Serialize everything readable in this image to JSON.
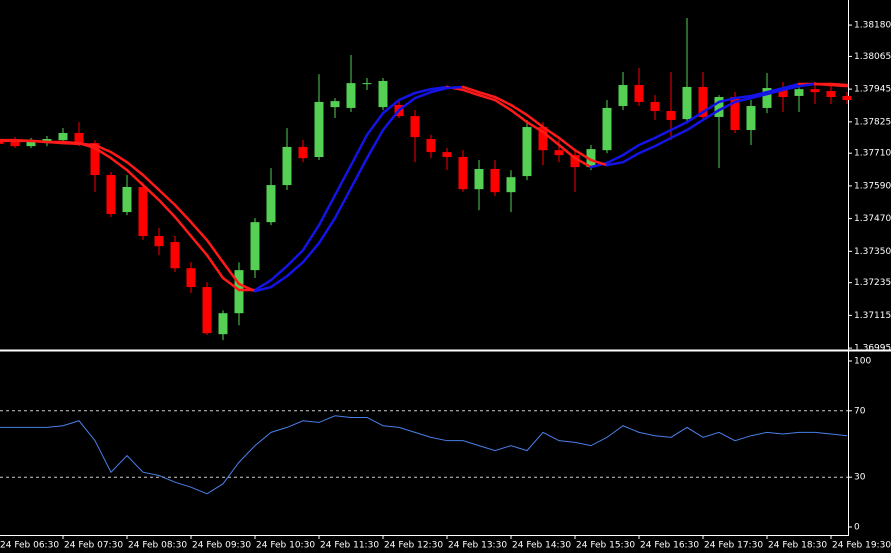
{
  "chart_data": [
    {
      "type": "candlestick",
      "categories": [
        "24 Feb 06:30",
        null,
        null,
        null,
        "24 Feb 07:30",
        null,
        null,
        null,
        "24 Feb 08:30",
        null,
        null,
        null,
        "24 Feb 09:30",
        null,
        null,
        null,
        "24 Feb 10:30",
        null,
        null,
        null,
        "24 Feb 11:30",
        null,
        null,
        null,
        "24 Feb 12:30",
        null,
        null,
        null,
        "24 Feb 13:30",
        null,
        null,
        null,
        "24 Feb 14:30",
        null,
        null,
        null,
        "24 Feb 15:30",
        null,
        null,
        null,
        "24 Feb 16:30",
        null,
        null,
        null,
        "24 Feb 17:30",
        null,
        null,
        null,
        "24 Feb 18:30",
        null,
        null,
        null,
        "24 Feb 19:30",
        null
      ],
      "open": [
        1.37762,
        1.37758,
        1.37736,
        1.37747,
        1.37758,
        1.37784,
        1.37747,
        1.3763,
        1.37494,
        1.37586,
        1.37406,
        1.37384,
        1.37288,
        1.37219,
        1.37046,
        1.37123,
        1.37281,
        1.37457,
        1.37593,
        1.37733,
        1.37696,
        1.37879,
        1.37876,
        1.37964,
        1.37879,
        1.37887,
        1.37846,
        1.37762,
        1.37714,
        1.37696,
        1.37578,
        1.37652,
        1.37567,
        1.37626,
        1.37806,
        1.37721,
        1.37703,
        1.37659,
        1.37721,
        1.37883,
        1.3796,
        1.37898,
        1.37865,
        1.37835,
        1.37953,
        1.37843,
        1.37916,
        1.37795,
        1.37876,
        1.37949,
        1.3792,
        1.37945,
        1.37938,
        1.3792
      ],
      "high": [
        1.37769,
        1.37769,
        1.37766,
        1.37773,
        1.37802,
        1.37824,
        1.37758,
        1.37641,
        1.3763,
        1.37604,
        1.37435,
        1.37406,
        1.3731,
        1.37237,
        1.37134,
        1.3731,
        1.37472,
        1.37655,
        1.37802,
        1.37758,
        1.38,
        1.37912,
        1.3807,
        1.37986,
        1.37986,
        1.37905,
        1.37868,
        1.37777,
        1.37729,
        1.37721,
        1.37685,
        1.37685,
        1.37648,
        1.37832,
        1.37824,
        1.37758,
        1.37721,
        1.3774,
        1.37905,
        1.38008,
        1.38022,
        1.37923,
        1.38008,
        1.38206,
        1.38008,
        1.37923,
        1.37934,
        1.37905,
        1.38004,
        1.37971,
        1.37967,
        1.37971,
        1.37956,
        1.37934
      ],
      "low": [
        1.37736,
        1.37729,
        1.37729,
        1.37736,
        1.37751,
        1.37736,
        1.37567,
        1.37476,
        1.37483,
        1.37391,
        1.37336,
        1.37274,
        1.37197,
        1.37043,
        1.37024,
        1.37079,
        1.37252,
        1.37446,
        1.37575,
        1.37677,
        1.37685,
        1.37839,
        1.37861,
        1.37942,
        1.37868,
        1.37839,
        1.37677,
        1.37692,
        1.37648,
        1.37567,
        1.37501,
        1.37553,
        1.37494,
        1.37611,
        1.37666,
        1.37677,
        1.37567,
        1.37648,
        1.3771,
        1.37868,
        1.37883,
        1.37832,
        1.37758,
        1.37824,
        1.37832,
        1.37655,
        1.37784,
        1.3774,
        1.37857,
        1.37861,
        1.37861,
        1.3789,
        1.3789,
        1.3789
      ],
      "close": [
        1.37744,
        1.37736,
        1.37755,
        1.37762,
        1.37784,
        1.37747,
        1.3763,
        1.37487,
        1.37586,
        1.37406,
        1.37369,
        1.37288,
        1.37219,
        1.3705,
        1.37123,
        1.37281,
        1.37457,
        1.37593,
        1.37733,
        1.37692,
        1.37898,
        1.37901,
        1.37967,
        1.37967,
        1.37975,
        1.37846,
        1.37769,
        1.37714,
        1.37696,
        1.37578,
        1.37652,
        1.37567,
        1.37622,
        1.37806,
        1.37721,
        1.37703,
        1.37659,
        1.37725,
        1.37876,
        1.3796,
        1.37898,
        1.37865,
        1.37832,
        1.37953,
        1.37843,
        1.37916,
        1.37795,
        1.37883,
        1.37949,
        1.37916,
        1.37945,
        1.37934,
        1.37916,
        1.37905
      ],
      "up_color": "#55d055",
      "down_color": "#ff0000",
      "lines": [
        {
          "values": [
            1.37758,
            1.37758,
            1.37755,
            1.37751,
            1.37751,
            1.37747,
            1.37729,
            1.37692,
            1.37648,
            1.37593,
            1.37538,
            1.37476,
            1.37406,
            1.37336,
            1.37252,
            1.37208,
            1.37208,
            1.37244,
            1.37296,
            1.37354,
            1.37446,
            1.37556,
            1.37666,
            1.37777,
            1.37857,
            1.37905,
            1.37931,
            1.37945,
            1.37953,
            1.37942,
            1.37923,
            1.37905,
            1.37868,
            1.37824,
            1.37788,
            1.3774,
            1.37692,
            1.37659,
            1.37674,
            1.37703,
            1.3774,
            1.37766,
            1.37795,
            1.37824,
            1.37861,
            1.37898,
            1.37912,
            1.3792,
            1.37934,
            1.37949,
            1.37964,
            1.37964,
            1.3796,
            1.37956
          ],
          "rising_color": "#1414e6",
          "falling_color": "#ff1a1a"
        },
        {
          "values": [
            1.37755,
            1.37755,
            1.37755,
            1.37751,
            1.37747,
            1.37744,
            1.3774,
            1.37714,
            1.37677,
            1.3763,
            1.37575,
            1.3752,
            1.37457,
            1.37391,
            1.3731,
            1.3723,
            1.37204,
            1.37219,
            1.37259,
            1.3731,
            1.3738,
            1.37472,
            1.37582,
            1.37692,
            1.37795,
            1.37868,
            1.37912,
            1.37934,
            1.37949,
            1.37953,
            1.37934,
            1.37916,
            1.37887,
            1.3785,
            1.37806,
            1.37766,
            1.37721,
            1.37685,
            1.37666,
            1.37677,
            1.3771,
            1.37736,
            1.37766,
            1.37795,
            1.37832,
            1.37868,
            1.37898,
            1.37912,
            1.37927,
            1.37942,
            1.37956,
            1.37964,
            1.37964,
            1.3796
          ],
          "rising_color": "#1414e6",
          "falling_color": "#ff1a1a"
        }
      ],
      "ylim": [
        1.36988,
        1.38272
      ],
      "yticks": [
        {
          "value": 1.3818,
          "label": "1.38180"
        },
        1.38065,
        1.37945,
        1.37825,
        {
          "value": 1.3771,
          "label": "1.37710"
        },
        {
          "value": 1.3759,
          "label": "1.37590"
        },
        {
          "value": 1.3747,
          "label": "1.37470"
        },
        {
          "value": 1.3735,
          "label": "1.37350"
        },
        1.37235,
        1.37115,
        1.36995
      ]
    },
    {
      "type": "line",
      "values": [
        60,
        60,
        60,
        60,
        61,
        64,
        52,
        33,
        43,
        33,
        31,
        27,
        24,
        20,
        26,
        39,
        49,
        57,
        60,
        64,
        63,
        67,
        66,
        66,
        61,
        60,
        57,
        54,
        52,
        52,
        49,
        46,
        49,
        46,
        57,
        52,
        51,
        49,
        54,
        61,
        57,
        55,
        54,
        60,
        54,
        57,
        52,
        55,
        57,
        56,
        57,
        57,
        56,
        55
      ],
      "color": "#4a7fe8",
      "ylim": [
        0,
        100
      ],
      "yticks": [
        0,
        30,
        70,
        100
      ],
      "grid": "dashed"
    }
  ]
}
